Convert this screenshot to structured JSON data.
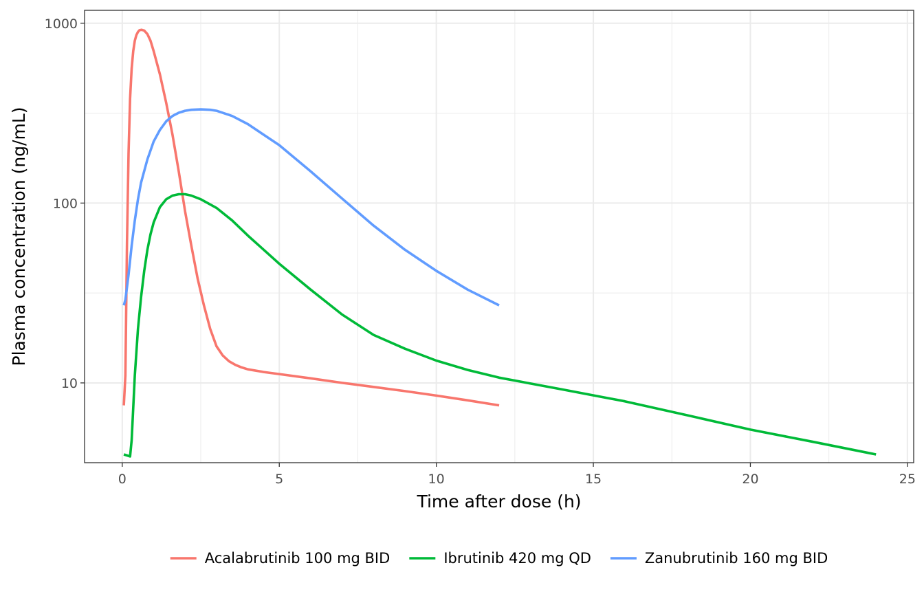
{
  "chart_data": {
    "type": "line",
    "title": "",
    "xlabel": "Time after dose (h)",
    "ylabel": "Plasma concentration (ng/mL)",
    "xlim": [
      -1.2,
      25.2
    ],
    "ylim": [
      3.6,
      1180
    ],
    "yscale": "log",
    "x_ticks": [
      0,
      5,
      10,
      15,
      20,
      25
    ],
    "x_tick_labels": [
      "0",
      "5",
      "10",
      "15",
      "20",
      "25"
    ],
    "y_ticks": [
      10,
      100,
      1000
    ],
    "y_tick_labels": [
      "10",
      "100",
      "1000"
    ],
    "grid": true,
    "legend_position": "bottom",
    "series": [
      {
        "name": "Acalabrutinib 100 mg BID",
        "color": "#f8766d",
        "x": [
          0.05,
          0.1,
          0.15,
          0.2,
          0.25,
          0.3,
          0.35,
          0.4,
          0.45,
          0.5,
          0.55,
          0.62,
          0.7,
          0.8,
          0.9,
          1.0,
          1.2,
          1.4,
          1.6,
          1.8,
          2.0,
          2.2,
          2.4,
          2.6,
          2.8,
          3.0,
          3.2,
          3.4,
          3.6,
          3.8,
          4.0,
          4.5,
          5.0,
          6.0,
          7.0,
          8.0,
          9.0,
          10.0,
          11.0,
          12.0
        ],
        "y": [
          7.5,
          11,
          60,
          190,
          380,
          560,
          700,
          800,
          860,
          895,
          915,
          920,
          910,
          870,
          800,
          700,
          520,
          360,
          240,
          150,
          90,
          58,
          38,
          27,
          20,
          16,
          14.2,
          13.2,
          12.6,
          12.2,
          11.9,
          11.5,
          11.2,
          10.6,
          10.0,
          9.5,
          9.0,
          8.5,
          8.0,
          7.5
        ]
      },
      {
        "name": "Ibrutinib 420 mg QD",
        "color": "#00ba38",
        "x": [
          0.05,
          0.25,
          0.3,
          0.4,
          0.5,
          0.6,
          0.7,
          0.8,
          0.9,
          1.0,
          1.2,
          1.4,
          1.6,
          1.8,
          2.0,
          2.2,
          2.5,
          3.0,
          3.5,
          4.0,
          5.0,
          6.0,
          7.0,
          8.0,
          9.0,
          10.0,
          11.0,
          12.0,
          14.0,
          16.0,
          18.0,
          20.0,
          22.0,
          24.0
        ],
        "y": [
          4.0,
          3.9,
          4.8,
          11,
          20,
          30,
          42,
          55,
          67,
          78,
          95,
          105,
          110,
          112,
          112,
          110,
          105,
          94,
          80,
          66,
          46,
          33,
          24,
          18.5,
          15.5,
          13.3,
          11.8,
          10.7,
          9.2,
          7.9,
          6.6,
          5.5,
          4.7,
          4.0
        ]
      },
      {
        "name": "Zanubrutinib 160 mg BID",
        "color": "#619cff",
        "x": [
          0.05,
          0.1,
          0.2,
          0.3,
          0.4,
          0.5,
          0.6,
          0.8,
          1.0,
          1.2,
          1.4,
          1.6,
          1.8,
          2.0,
          2.2,
          2.5,
          2.8,
          3.0,
          3.5,
          4.0,
          4.5,
          5.0,
          6.0,
          7.0,
          8.0,
          9.0,
          10.0,
          11.0,
          12.0
        ],
        "y": [
          27,
          29,
          40,
          58,
          80,
          105,
          130,
          175,
          220,
          255,
          285,
          305,
          318,
          326,
          330,
          332,
          330,
          326,
          305,
          275,
          240,
          210,
          150,
          106,
          75,
          55,
          42,
          33,
          27
        ]
      }
    ]
  }
}
